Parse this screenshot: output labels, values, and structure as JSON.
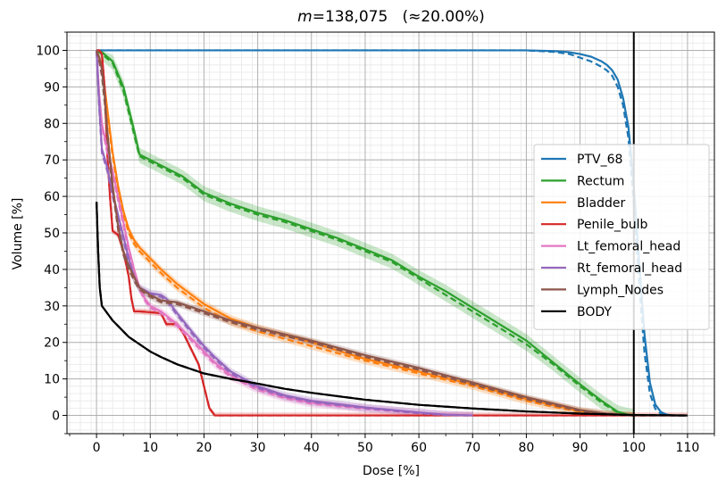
{
  "chart_data": {
    "type": "line",
    "title": {
      "var": "m",
      "rest": "=138,075   (≈20.00%)"
    },
    "xlabel": "Dose [%]",
    "ylabel": "Volume [%]",
    "xlim": [
      -5.5,
      115
    ],
    "ylim": [
      -5,
      105
    ],
    "xticks": [
      0,
      10,
      20,
      30,
      40,
      50,
      60,
      70,
      80,
      90,
      100,
      110
    ],
    "xtick_labels": [
      "0",
      "10",
      "20",
      "30",
      "40",
      "50",
      "60",
      "70",
      "80",
      "90",
      "100",
      "110"
    ],
    "yticks": [
      0,
      10,
      20,
      30,
      40,
      50,
      60,
      70,
      80,
      90,
      100
    ],
    "ytick_labels": [
      "0",
      "10",
      "20",
      "30",
      "40",
      "50",
      "60",
      "70",
      "80",
      "90",
      "100"
    ],
    "grid": true,
    "minor_grid": true,
    "legend_position": "center-right",
    "reference_line_x": 100,
    "series": [
      {
        "name": "PTV_68",
        "color": "#1f77b4",
        "x": [
          0,
          20,
          40,
          60,
          80,
          85,
          88,
          90,
          92,
          94,
          95,
          96,
          97,
          98,
          99,
          100,
          101,
          102,
          103,
          104,
          105,
          106,
          107,
          110
        ],
        "y": [
          100,
          100,
          100,
          100,
          100,
          99.8,
          99.5,
          99,
          98.3,
          97,
          96,
          94.5,
          92,
          87,
          79,
          63,
          42,
          22,
          9,
          3,
          1,
          0.3,
          0,
          0
        ],
        "y_dashed": [
          100,
          100,
          100,
          100,
          100,
          99.6,
          99,
          98,
          97,
          95.5,
          94.5,
          93,
          90,
          85,
          76,
          58,
          36,
          17,
          6,
          1.8,
          0.5,
          0.1,
          0,
          0
        ],
        "band": 0
      },
      {
        "name": "Rectum",
        "color": "#2ca02c",
        "x": [
          0,
          1,
          3,
          5,
          6,
          7,
          8,
          10,
          12,
          14,
          16,
          20,
          25,
          30,
          35,
          40,
          45,
          50,
          55,
          60,
          65,
          70,
          75,
          80,
          85,
          90,
          94,
          97,
          99,
          100
        ],
        "y": [
          100,
          99.5,
          97,
          90,
          84,
          78,
          71.5,
          70,
          68.5,
          67,
          65.5,
          61,
          58,
          55.5,
          53.5,
          51,
          48.5,
          45.5,
          42.5,
          38,
          34,
          29.5,
          25,
          20.5,
          14.5,
          8.5,
          4,
          1,
          0.2,
          0
        ],
        "y_dashed": [
          100,
          99,
          96.5,
          89,
          83,
          77,
          71,
          69.5,
          68,
          66.5,
          65,
          60.5,
          57.5,
          55,
          53,
          50.5,
          48,
          45,
          42,
          37.5,
          33,
          28.5,
          24,
          19.5,
          14,
          8,
          3.5,
          0.8,
          0.1,
          0
        ],
        "band": 1.8
      },
      {
        "name": "Bladder",
        "color": "#ff7f0e",
        "x": [
          0,
          1,
          2,
          3,
          4,
          5,
          6,
          7,
          8,
          10,
          12,
          15,
          20,
          25,
          30,
          40,
          50,
          60,
          70,
          80,
          85,
          90,
          95,
          100
        ],
        "y": [
          100,
          96,
          84,
          72,
          63,
          56,
          51,
          48,
          46,
          43,
          40,
          36,
          30.5,
          26.5,
          24,
          20,
          15.5,
          12,
          8.5,
          4.5,
          2.8,
          1.2,
          0.3,
          0
        ],
        "y_dashed": [
          100,
          95,
          83,
          71,
          62,
          55,
          50,
          47,
          45,
          42,
          39,
          35,
          29.5,
          25.5,
          23,
          19,
          15,
          11.5,
          8,
          4,
          2.4,
          1,
          0.2,
          0
        ],
        "band": 1
      },
      {
        "name": "Penile_bulb",
        "color": "#d62728",
        "x": [
          0,
          0.5,
          1,
          1.5,
          2,
          2.5,
          3,
          4,
          5,
          6,
          6.5,
          7,
          8,
          12,
          13,
          15,
          16,
          17,
          18,
          19,
          20,
          21,
          22,
          23,
          30,
          50,
          110
        ],
        "y": [
          100,
          100,
          99,
          90,
          72,
          60,
          50.5,
          49.5,
          45,
          38,
          32,
          28.5,
          28.5,
          28,
          25,
          25,
          23,
          20,
          17,
          14,
          8,
          2,
          0,
          0,
          0,
          0,
          0
        ],
        "y_dashed": [
          100,
          100,
          99,
          90,
          72,
          60,
          50.5,
          49.5,
          45,
          38,
          32,
          28.5,
          28.5,
          28,
          25,
          25,
          23,
          20,
          17,
          14,
          8,
          2,
          0,
          0,
          0,
          0,
          0
        ],
        "band": 0.8
      },
      {
        "name": "Lt_femoral_head",
        "color": "#e377c2",
        "x": [
          0,
          0.5,
          1,
          2,
          3,
          4,
          5,
          6,
          7,
          8,
          9,
          10,
          12,
          15,
          18,
          20,
          22,
          25,
          30,
          35,
          40,
          50,
          60,
          65,
          70
        ],
        "y": [
          100,
          88,
          80,
          73,
          67,
          60,
          53,
          46,
          40,
          35,
          32,
          30,
          28.5,
          25,
          20.5,
          17.5,
          14.5,
          11,
          7.5,
          5,
          3.5,
          2,
          0.8,
          0.2,
          0
        ],
        "y_dashed": [
          100,
          87,
          79,
          72,
          66,
          59,
          52,
          45,
          39,
          34.5,
          31.5,
          29.5,
          28,
          24.5,
          20,
          17,
          14,
          10.5,
          7,
          4.7,
          3.2,
          1.8,
          0.6,
          0.1,
          0
        ],
        "band": 1
      },
      {
        "name": "Rt_femoral_head",
        "color": "#9467bd",
        "x": [
          0,
          0.5,
          1,
          2,
          3,
          4,
          5,
          6,
          7,
          8,
          10,
          12,
          13,
          15,
          18,
          20,
          22,
          25,
          30,
          35,
          40,
          50,
          60,
          65,
          70
        ],
        "y": [
          100,
          85,
          73,
          68,
          61,
          55,
          49,
          43,
          38,
          35,
          33.5,
          33,
          32,
          28,
          22.5,
          19,
          16,
          12,
          8,
          5.5,
          4,
          2.2,
          0.8,
          0.2,
          0
        ],
        "y_dashed": [
          100,
          84,
          72,
          67,
          60,
          54,
          48,
          42,
          37,
          34.5,
          33,
          32.5,
          31.5,
          27.5,
          22,
          18.5,
          15.5,
          11.5,
          7.5,
          5.2,
          3.7,
          2,
          0.6,
          0.1,
          0
        ],
        "band": 1
      },
      {
        "name": "Lymph_Nodes",
        "color": "#8c564b",
        "x": [
          0,
          0.5,
          1,
          1.5,
          2,
          3,
          4,
          5,
          6,
          7,
          8,
          10,
          12,
          15,
          20,
          25,
          30,
          40,
          50,
          60,
          70,
          80,
          90,
          95,
          100
        ],
        "y": [
          100,
          98,
          95,
          88,
          78,
          63,
          52,
          45,
          41,
          38,
          35,
          33,
          31.5,
          31,
          28.5,
          26,
          24,
          20.5,
          16.5,
          13,
          9,
          5,
          1.5,
          0.5,
          0
        ],
        "y_dashed": [
          100,
          97,
          93,
          86,
          76,
          62,
          51,
          44,
          40,
          37,
          34.5,
          32.5,
          31,
          30.5,
          28,
          25.5,
          23.5,
          20,
          16,
          12.5,
          8.5,
          4.5,
          1.2,
          0.3,
          0
        ],
        "band": 0.8
      },
      {
        "name": "BODY",
        "color": "#000000",
        "x": [
          0,
          0.3,
          0.6,
          1,
          1.5,
          2,
          3,
          4,
          5,
          6,
          8,
          10,
          12,
          15,
          20,
          25,
          30,
          35,
          40,
          50,
          60,
          70,
          80,
          90,
          100,
          110
        ],
        "y": [
          58.5,
          45,
          35,
          30,
          29,
          28,
          26,
          24.5,
          23,
          21.5,
          19.5,
          17.5,
          16,
          14,
          11.5,
          10,
          8.7,
          7.3,
          6.2,
          4.3,
          2.9,
          1.9,
          1.1,
          0.5,
          0.1,
          0
        ],
        "y_dashed": [
          58.5,
          45,
          35,
          30,
          29,
          28,
          26,
          24.5,
          23,
          21.5,
          19.5,
          17.5,
          16,
          14,
          11.5,
          10,
          8.7,
          7.3,
          6.2,
          4.3,
          2.9,
          1.9,
          1.1,
          0.5,
          0.1,
          0
        ],
        "band": 0
      }
    ]
  }
}
